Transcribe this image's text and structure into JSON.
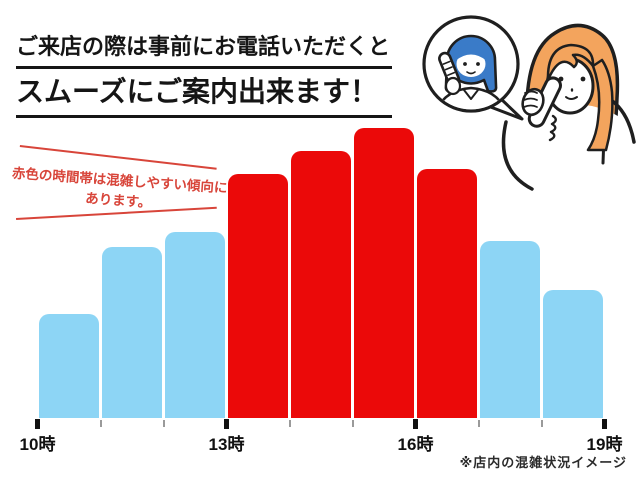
{
  "header": {
    "title_line1": "ご来店の際は事前にお電話いただくと",
    "title_line2": "スムーズにご案内出来ます！"
  },
  "annotation": {
    "line1": "赤色の時間帯は混雑しやすい傾向に",
    "line2": "あります。",
    "color": "#d8453a"
  },
  "footnote": "※店内の混雑状況イメージ",
  "colors": {
    "crowded": "#eb0909",
    "normal": "#8dd5f5",
    "outline": "#1f1f1f",
    "staff_hair": "#3a7bc8",
    "customer_hair": "#f3a45d"
  },
  "icons": {
    "illustration": "phone-call-illustration",
    "bubble": "speech-bubble"
  },
  "chart_data": {
    "type": "bar",
    "title": "店内の混雑状況イメージ",
    "categories": [
      "10-11時",
      "11-12時",
      "12-13時",
      "13-14時",
      "14-15時",
      "15-16時",
      "16-17時",
      "17-18時",
      "18-19時"
    ],
    "values": [
      36,
      59,
      64,
      84,
      92,
      100,
      86,
      61,
      44
    ],
    "crowded": [
      false,
      false,
      false,
      true,
      true,
      true,
      true,
      false,
      false
    ],
    "x_tick_labels": [
      "10時",
      "13時",
      "16時",
      "19時"
    ],
    "xlabel": "",
    "ylabel": "",
    "ylim": [
      0,
      100
    ],
    "grid": false,
    "legend": "none",
    "note": "red bars = hours that tend to be crowded"
  }
}
